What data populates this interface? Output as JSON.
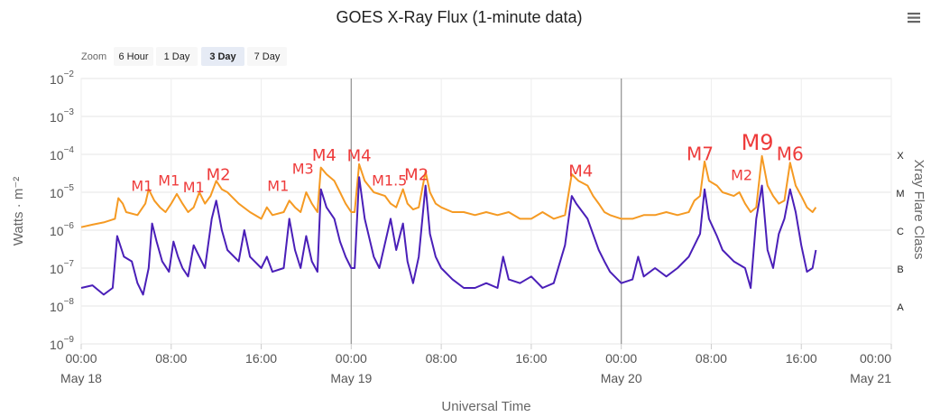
{
  "title": "GOES X-Ray Flux (1-minute data)",
  "menu_icon": "hamburger-menu-icon",
  "zoom": {
    "label": "Zoom",
    "buttons": [
      {
        "label": "6 Hour",
        "active": false
      },
      {
        "label": "1 Day",
        "active": false
      },
      {
        "label": "3 Day",
        "active": true
      },
      {
        "label": "7 Day",
        "active": false
      }
    ]
  },
  "chart_data": {
    "type": "line",
    "title": "GOES X-Ray Flux (1-minute data)",
    "xlabel": "Universal Time",
    "ylabel": "Watts · m⁻²",
    "y2label": "Xray Flare Class",
    "y_scale": "log",
    "ylim": [
      1e-09,
      0.01
    ],
    "xlim_hours": [
      0,
      72
    ],
    "x_ticks": [
      {
        "h": 0,
        "time": "00:00",
        "date": "May 18"
      },
      {
        "h": 8,
        "time": "08:00",
        "date": ""
      },
      {
        "h": 16,
        "time": "16:00",
        "date": ""
      },
      {
        "h": 24,
        "time": "00:00",
        "date": "May 19"
      },
      {
        "h": 32,
        "time": "08:00",
        "date": ""
      },
      {
        "h": 40,
        "time": "16:00",
        "date": ""
      },
      {
        "h": 48,
        "time": "00:00",
        "date": "May 20"
      },
      {
        "h": 56,
        "time": "08:00",
        "date": ""
      },
      {
        "h": 64,
        "time": "16:00",
        "date": ""
      },
      {
        "h": 72,
        "time": "00:00",
        "date": "May 21"
      }
    ],
    "y_ticks": [
      {
        "exp": -2,
        "base": "10",
        "sup": "−2"
      },
      {
        "exp": -3,
        "base": "10",
        "sup": "−3"
      },
      {
        "exp": -4,
        "base": "10",
        "sup": "−4"
      },
      {
        "exp": -5,
        "base": "10",
        "sup": "−5"
      },
      {
        "exp": -6,
        "base": "10",
        "sup": "−6"
      },
      {
        "exp": -7,
        "base": "10",
        "sup": "−7"
      },
      {
        "exp": -8,
        "base": "10",
        "sup": "−8"
      },
      {
        "exp": -9,
        "base": "10",
        "sup": "−9"
      }
    ],
    "flare_classes": [
      {
        "label": "X",
        "exp": -4
      },
      {
        "label": "M",
        "exp": -5
      },
      {
        "label": "C",
        "exp": -6
      },
      {
        "label": "B",
        "exp": -7
      },
      {
        "label": "A",
        "exp": -8
      }
    ],
    "day_lines_hours": [
      24,
      48
    ],
    "grid": true,
    "series": [
      {
        "color": "#f59a23",
        "points": [
          [
            0,
            1.2e-06
          ],
          [
            1,
            1.4e-06
          ],
          [
            2,
            1.6e-06
          ],
          [
            3,
            2e-06
          ],
          [
            3.3,
            7e-06
          ],
          [
            3.7,
            5e-06
          ],
          [
            4,
            3e-06
          ],
          [
            5,
            2.5e-06
          ],
          [
            5.7,
            5e-06
          ],
          [
            6,
            1.2e-05
          ],
          [
            6.5,
            6e-06
          ],
          [
            7,
            4e-06
          ],
          [
            7.5,
            3e-06
          ],
          [
            8,
            5e-06
          ],
          [
            8.5,
            9e-06
          ],
          [
            9,
            5e-06
          ],
          [
            9.5,
            3e-06
          ],
          [
            10,
            4e-06
          ],
          [
            10.5,
            1e-05
          ],
          [
            11,
            5e-06
          ],
          [
            11.5,
            8e-06
          ],
          [
            12,
            2e-05
          ],
          [
            12.5,
            1.2e-05
          ],
          [
            13,
            1e-05
          ],
          [
            14,
            5e-06
          ],
          [
            15,
            3e-06
          ],
          [
            16,
            2e-06
          ],
          [
            16.5,
            4e-06
          ],
          [
            17,
            2.5e-06
          ],
          [
            18,
            3e-06
          ],
          [
            18.5,
            6e-06
          ],
          [
            19,
            4e-06
          ],
          [
            19.5,
            3e-06
          ],
          [
            20,
            1e-05
          ],
          [
            20.5,
            5e-06
          ],
          [
            21,
            3e-06
          ],
          [
            21.3,
            4.5e-05
          ],
          [
            21.8,
            3e-05
          ],
          [
            22.5,
            2e-05
          ],
          [
            23,
            1e-05
          ],
          [
            23.5,
            5e-06
          ],
          [
            24,
            3e-06
          ],
          [
            24.3,
            3e-06
          ],
          [
            24.7,
            5.5e-05
          ],
          [
            25.2,
            2e-05
          ],
          [
            26,
            1e-05
          ],
          [
            27,
            8e-06
          ],
          [
            27.5,
            5e-06
          ],
          [
            28,
            4e-06
          ],
          [
            28.6,
            1.2e-05
          ],
          [
            29,
            5e-06
          ],
          [
            29.5,
            3.5e-06
          ],
          [
            30,
            4e-06
          ],
          [
            30.6,
            3.5e-05
          ],
          [
            31,
            1e-05
          ],
          [
            31.5,
            5e-06
          ],
          [
            32,
            4e-06
          ],
          [
            33,
            3e-06
          ],
          [
            34,
            3e-06
          ],
          [
            35,
            2.5e-06
          ],
          [
            36,
            3e-06
          ],
          [
            37,
            2.5e-06
          ],
          [
            38,
            3e-06
          ],
          [
            39,
            2e-06
          ],
          [
            40,
            2e-06
          ],
          [
            41,
            3e-06
          ],
          [
            42,
            2e-06
          ],
          [
            43,
            2.5e-06
          ],
          [
            43.6,
            3e-05
          ],
          [
            44.2,
            2e-05
          ],
          [
            45,
            1.5e-05
          ],
          [
            45.5,
            8e-06
          ],
          [
            46,
            5e-06
          ],
          [
            46.5,
            3e-06
          ],
          [
            47,
            2.5e-06
          ],
          [
            48,
            2e-06
          ],
          [
            49,
            2e-06
          ],
          [
            50,
            2.5e-06
          ],
          [
            51,
            2.5e-06
          ],
          [
            52,
            3e-06
          ],
          [
            53,
            2.5e-06
          ],
          [
            54,
            3e-06
          ],
          [
            54.5,
            6e-06
          ],
          [
            55,
            8e-06
          ],
          [
            55.4,
            6.5e-05
          ],
          [
            55.8,
            2e-05
          ],
          [
            56.5,
            1.5e-05
          ],
          [
            57,
            1e-05
          ],
          [
            58,
            8e-06
          ],
          [
            58.5,
            1e-05
          ],
          [
            59,
            5e-06
          ],
          [
            59.5,
            3e-06
          ],
          [
            60,
            4e-06
          ],
          [
            60.5,
            9e-05
          ],
          [
            61,
            1.5e-05
          ],
          [
            61.5,
            8e-06
          ],
          [
            62,
            5e-06
          ],
          [
            62.5,
            6e-06
          ],
          [
            63,
            6e-05
          ],
          [
            63.5,
            1.5e-05
          ],
          [
            64,
            8e-06
          ],
          [
            64.5,
            4e-06
          ],
          [
            65,
            3e-06
          ],
          [
            65.3,
            4e-06
          ]
        ]
      },
      {
        "color": "#4a1fb8",
        "points": [
          [
            0,
            3e-08
          ],
          [
            1,
            3.5e-08
          ],
          [
            2,
            2e-08
          ],
          [
            2.8,
            3e-08
          ],
          [
            3.2,
            7e-07
          ],
          [
            3.8,
            2e-07
          ],
          [
            4.5,
            1.5e-07
          ],
          [
            5,
            4e-08
          ],
          [
            5.5,
            2e-08
          ],
          [
            6,
            1e-07
          ],
          [
            6.3,
            1.5e-06
          ],
          [
            6.7,
            5e-07
          ],
          [
            7.2,
            1.5e-07
          ],
          [
            7.8,
            8e-08
          ],
          [
            8.2,
            5e-07
          ],
          [
            8.6,
            2e-07
          ],
          [
            9,
            1e-07
          ],
          [
            9.5,
            6e-08
          ],
          [
            10,
            4e-07
          ],
          [
            10.5,
            2e-07
          ],
          [
            11,
            1e-07
          ],
          [
            11.6,
            2e-06
          ],
          [
            12,
            6e-06
          ],
          [
            12.5,
            1e-06
          ],
          [
            13,
            3e-07
          ],
          [
            14,
            1.5e-07
          ],
          [
            14.5,
            1e-06
          ],
          [
            15,
            2e-07
          ],
          [
            16,
            1e-07
          ],
          [
            16.5,
            2e-07
          ],
          [
            17,
            8e-08
          ],
          [
            18,
            1e-07
          ],
          [
            18.5,
            2e-06
          ],
          [
            19,
            3e-07
          ],
          [
            19.5,
            1e-07
          ],
          [
            20,
            7e-07
          ],
          [
            20.5,
            1.5e-07
          ],
          [
            21,
            8e-08
          ],
          [
            21.3,
            1.2e-05
          ],
          [
            21.8,
            4e-06
          ],
          [
            22.5,
            2e-06
          ],
          [
            23,
            5e-07
          ],
          [
            23.5,
            2e-07
          ],
          [
            24,
            1e-07
          ],
          [
            24.3,
            1e-07
          ],
          [
            24.7,
            2.5e-05
          ],
          [
            25.2,
            2e-06
          ],
          [
            26,
            2e-07
          ],
          [
            26.5,
            1e-07
          ],
          [
            27.5,
            2e-06
          ],
          [
            28,
            3e-07
          ],
          [
            28.6,
            1.5e-06
          ],
          [
            29,
            1.5e-07
          ],
          [
            29.5,
            4e-08
          ],
          [
            30,
            2e-07
          ],
          [
            30.6,
            1.5e-05
          ],
          [
            31,
            8e-07
          ],
          [
            31.5,
            2e-07
          ],
          [
            32,
            1e-07
          ],
          [
            33,
            5e-08
          ],
          [
            34,
            3e-08
          ],
          [
            35,
            3e-08
          ],
          [
            36,
            4e-08
          ],
          [
            37,
            3e-08
          ],
          [
            37.5,
            2e-07
          ],
          [
            38,
            5e-08
          ],
          [
            39,
            4e-08
          ],
          [
            40,
            6e-08
          ],
          [
            41,
            3e-08
          ],
          [
            42,
            4e-08
          ],
          [
            43,
            4e-07
          ],
          [
            43.6,
            8e-06
          ],
          [
            44,
            5e-06
          ],
          [
            45,
            2e-06
          ],
          [
            46,
            3e-07
          ],
          [
            46.5,
            1.5e-07
          ],
          [
            47,
            8e-08
          ],
          [
            48,
            4e-08
          ],
          [
            49,
            5e-08
          ],
          [
            49.5,
            2e-07
          ],
          [
            50,
            6e-08
          ],
          [
            51,
            1e-07
          ],
          [
            52,
            6e-08
          ],
          [
            53,
            1e-07
          ],
          [
            54,
            2e-07
          ],
          [
            55,
            8e-07
          ],
          [
            55.4,
            1.2e-05
          ],
          [
            55.8,
            2e-06
          ],
          [
            56.5,
            7e-07
          ],
          [
            57,
            3e-07
          ],
          [
            58,
            1.5e-07
          ],
          [
            59,
            1e-07
          ],
          [
            59.5,
            3e-08
          ],
          [
            60,
            2e-06
          ],
          [
            60.5,
            1.5e-05
          ],
          [
            61,
            3e-07
          ],
          [
            61.5,
            1e-07
          ],
          [
            62,
            8e-07
          ],
          [
            62.5,
            2e-06
          ],
          [
            63,
            1.2e-05
          ],
          [
            63.5,
            3e-06
          ],
          [
            64,
            4e-07
          ],
          [
            64.5,
            8e-08
          ],
          [
            65,
            1e-07
          ],
          [
            65.3,
            3e-07
          ]
        ]
      }
    ],
    "annotations": [
      {
        "text": "M1",
        "h": 5.4,
        "flux": 1.1e-05,
        "size": 16
      },
      {
        "text": "M1",
        "h": 7.8,
        "flux": 1.5e-05,
        "size": 16
      },
      {
        "text": "M1",
        "h": 10.0,
        "flux": 1e-05,
        "size": 16
      },
      {
        "text": "M2",
        "h": 12.2,
        "flux": 2.1e-05,
        "size": 18
      },
      {
        "text": "M1",
        "h": 17.5,
        "flux": 1.1e-05,
        "size": 16
      },
      {
        "text": "M3",
        "h": 19.7,
        "flux": 3.1e-05,
        "size": 16
      },
      {
        "text": "M4",
        "h": 21.6,
        "flux": 6.8e-05,
        "size": 18
      },
      {
        "text": "M4",
        "h": 24.7,
        "flux": 6.6e-05,
        "size": 18
      },
      {
        "text": "M1.5",
        "h": 27.4,
        "flux": 1.5e-05,
        "size": 16
      },
      {
        "text": "M2",
        "h": 29.8,
        "flux": 2.1e-05,
        "size": 18
      },
      {
        "text": "M4",
        "h": 44.4,
        "flux": 2.6e-05,
        "size": 18
      },
      {
        "text": "M7",
        "h": 55.0,
        "flux": 7e-05,
        "size": 20
      },
      {
        "text": "M2",
        "h": 58.7,
        "flux": 2.1e-05,
        "size": 16
      },
      {
        "text": "M9",
        "h": 60.1,
        "flux": 0.00013,
        "size": 24
      },
      {
        "text": "M6",
        "h": 63.0,
        "flux": 7e-05,
        "size": 20
      }
    ]
  }
}
